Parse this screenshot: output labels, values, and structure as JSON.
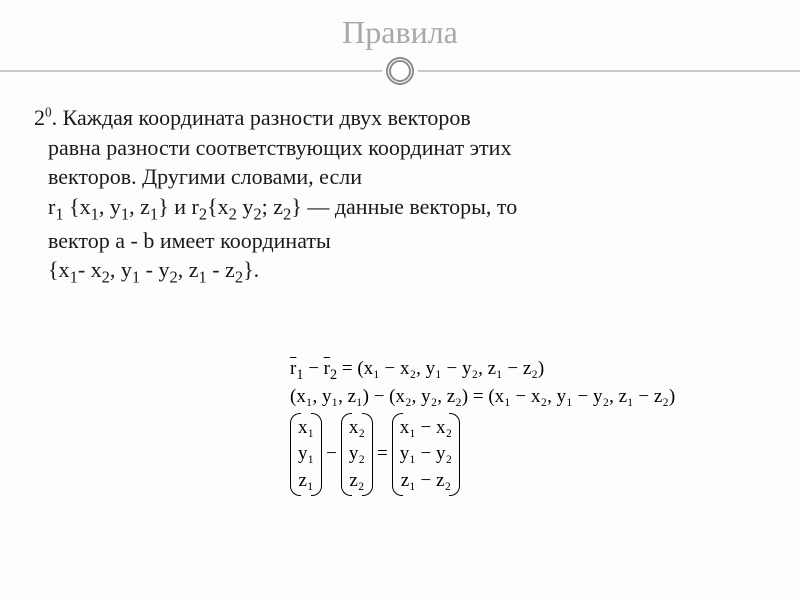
{
  "title": "Правила",
  "rule": {
    "number": "2",
    "line1": ". Каждая координата разности двух векторов",
    "line2": "равна разности соответствующих координат этих",
    "line3": "векторов. Другими словами, если",
    "line4_a": "r",
    "line4_b": " {x",
    "line4_c": ", y",
    "line4_d": ", z",
    "line4_e": "} и r",
    "line4_f": "{x",
    "line4_g": " y",
    "line4_h": "; z",
    "line4_i": "} — данные векторы, то",
    "line5": "вектор a - b имеет координаты",
    "line6_a": "{x",
    "line6_b": "- x",
    "line6_c": ", y",
    "line6_d": " - y",
    "line6_e": ", z",
    "line6_f": " - z",
    "line6_g": "}.",
    "s1": "1",
    "s2": "2"
  },
  "formula": {
    "row1_a": "r",
    "row1_b": " − ",
    "row1_c": "r",
    "row1_d": " = (x₁ − x₂, y₁ − y₂, z₁ − z₂)",
    "row2": "(x₁, y₁, z₁) − (x₂, y₂, z₂) = (x₁ − x₂, y₁ − y₂, z₁ − z₂)",
    "m1": {
      "a": "x₁",
      "b": "y₁",
      "c": "z₁"
    },
    "m2": {
      "a": "x₂",
      "b": "y₂",
      "c": "z₂"
    },
    "m3": {
      "a": "x₁ − x₂",
      "b": "y₁ − y₂",
      "c": "z₁ − z₂"
    },
    "minus": "−",
    "equals": "="
  },
  "colors": {
    "title": "#a8a8a8",
    "divider": "#c8c8c8",
    "text": "#1a1a1a",
    "bg": "#fdfdfd"
  }
}
